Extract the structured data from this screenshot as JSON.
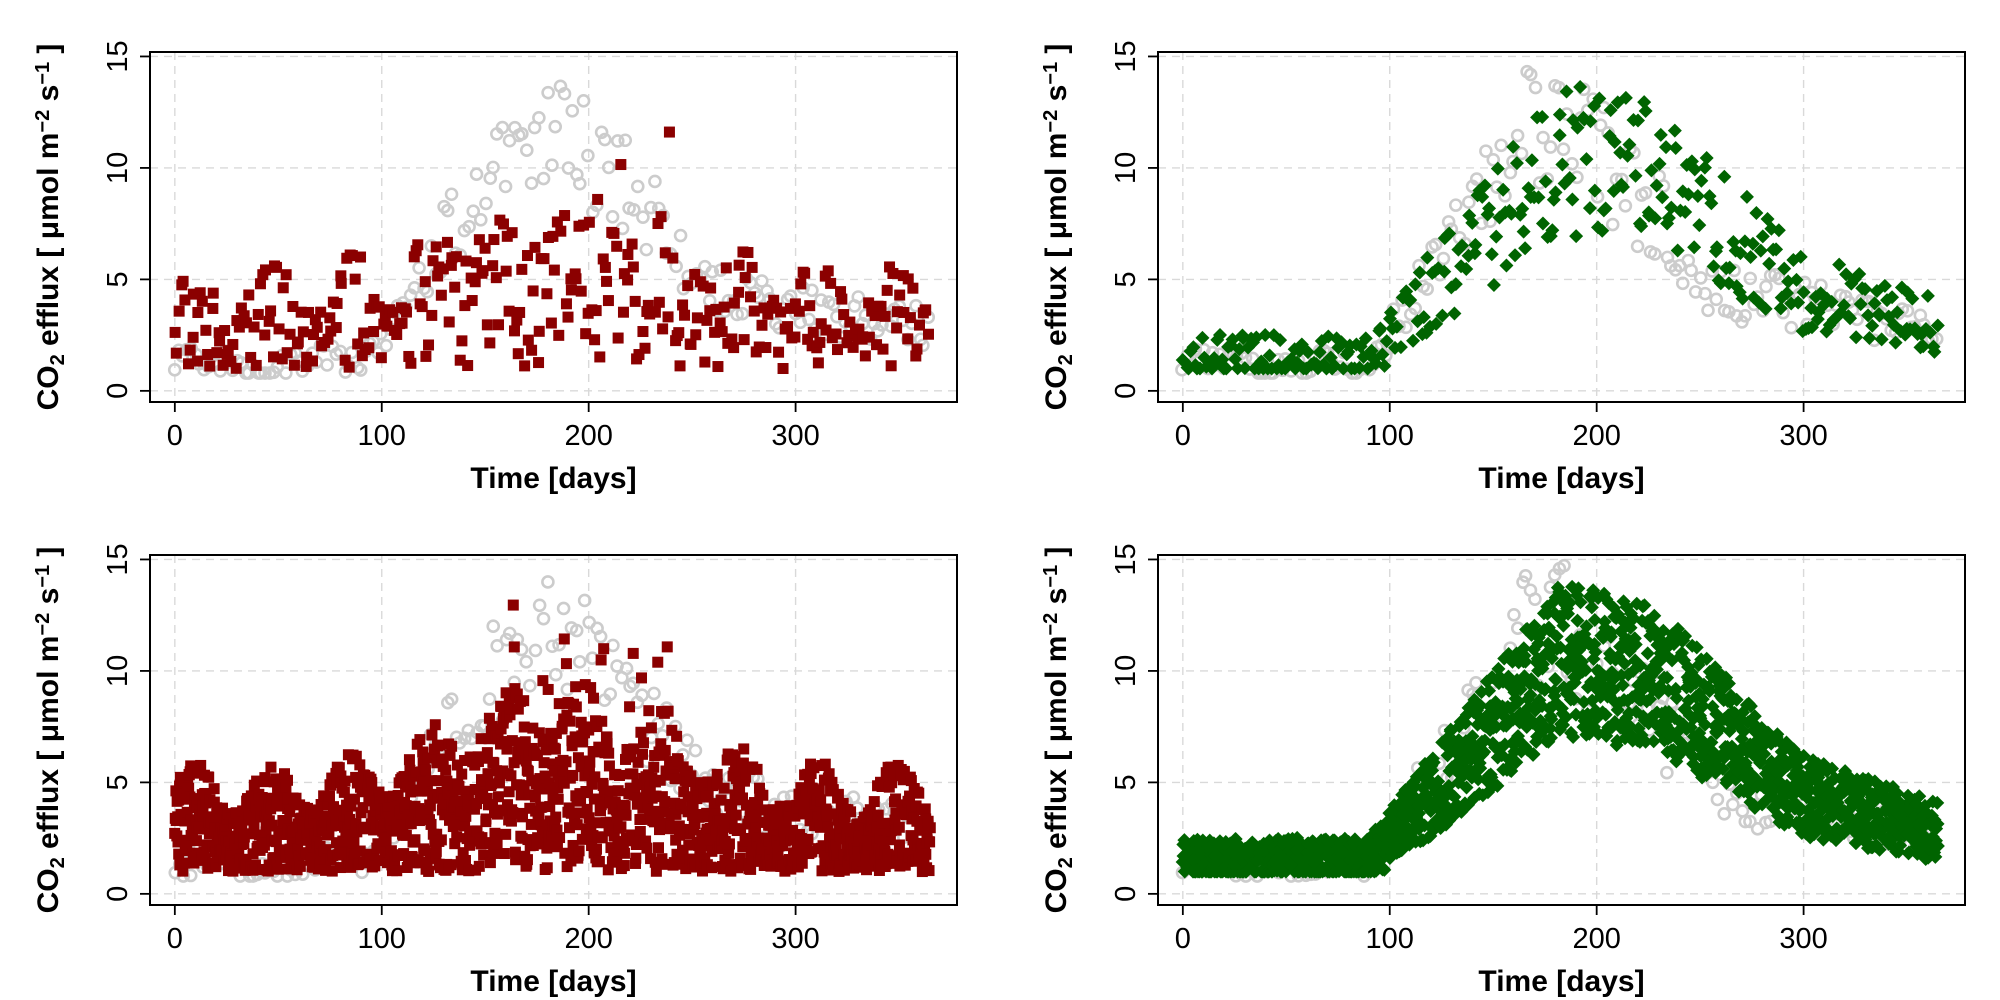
{
  "chart_data": [
    {
      "type": "scatter",
      "panel": "top-left",
      "xlabel": "Time [days]",
      "ylabel": {
        "pre": "CO",
        "sub": "2",
        "main": " efflux [ μmol m",
        "sup1": "−2",
        "mid": " s",
        "sup2": "−1",
        "post": " ]"
      },
      "xlim": [
        -12,
        378
      ],
      "ylim": [
        -0.5,
        15.2
      ],
      "xticks": [
        0,
        100,
        200,
        300
      ],
      "yticks": [
        0,
        5,
        10,
        15
      ],
      "grid": true,
      "series": [
        {
          "role": "observed",
          "color": "#cccccc",
          "marker": "open-circle",
          "density": "sparse"
        },
        {
          "role": "model",
          "color": "#8b0000",
          "marker": "filled-square",
          "density": "sparse",
          "pattern": "noisy"
        }
      ]
    },
    {
      "type": "scatter",
      "panel": "top-right",
      "xlabel": "Time [days]",
      "ylabel": {
        "pre": "CO",
        "sub": "2",
        "main": " efflux [ μmol m",
        "sup1": "−2",
        "mid": " s",
        "sup2": "−1",
        "post": " ]"
      },
      "xlim": [
        -12,
        378
      ],
      "ylim": [
        -0.5,
        15.2
      ],
      "xticks": [
        0,
        100,
        200,
        300
      ],
      "yticks": [
        0,
        5,
        10,
        15
      ],
      "grid": true,
      "series": [
        {
          "role": "observed",
          "color": "#cccccc",
          "marker": "open-circle",
          "density": "sparse"
        },
        {
          "role": "model",
          "color": "#006400",
          "marker": "filled-diamond",
          "density": "sparse",
          "pattern": "seasonal"
        }
      ]
    },
    {
      "type": "scatter",
      "panel": "bottom-left",
      "xlabel": "Time [days]",
      "ylabel": {
        "pre": "CO",
        "sub": "2",
        "main": " efflux [ μmol m",
        "sup1": "−2",
        "mid": " s",
        "sup2": "−1",
        "post": " ]"
      },
      "xlim": [
        -12,
        378
      ],
      "ylim": [
        -0.5,
        15.2
      ],
      "xticks": [
        0,
        100,
        200,
        300
      ],
      "yticks": [
        0,
        5,
        10,
        15
      ],
      "grid": true,
      "series": [
        {
          "role": "observed",
          "color": "#cccccc",
          "marker": "open-circle",
          "density": "sparse"
        },
        {
          "role": "model",
          "color": "#8b0000",
          "marker": "filled-square",
          "density": "dense",
          "pattern": "noisy"
        }
      ]
    },
    {
      "type": "scatter",
      "panel": "bottom-right",
      "xlabel": "Time [days]",
      "ylabel": {
        "pre": "CO",
        "sub": "2",
        "main": " efflux [ μmol m",
        "sup1": "−2",
        "mid": " s",
        "sup2": "−1",
        "post": " ]"
      },
      "xlim": [
        -12,
        378
      ],
      "ylim": [
        -0.5,
        15.2
      ],
      "xticks": [
        0,
        100,
        200,
        300
      ],
      "yticks": [
        0,
        5,
        10,
        15
      ],
      "grid": true,
      "series": [
        {
          "role": "observed",
          "color": "#cccccc",
          "marker": "open-circle",
          "density": "sparse"
        },
        {
          "role": "model",
          "color": "#006400",
          "marker": "filled-diamond",
          "density": "dense",
          "pattern": "seasonal"
        }
      ]
    }
  ]
}
